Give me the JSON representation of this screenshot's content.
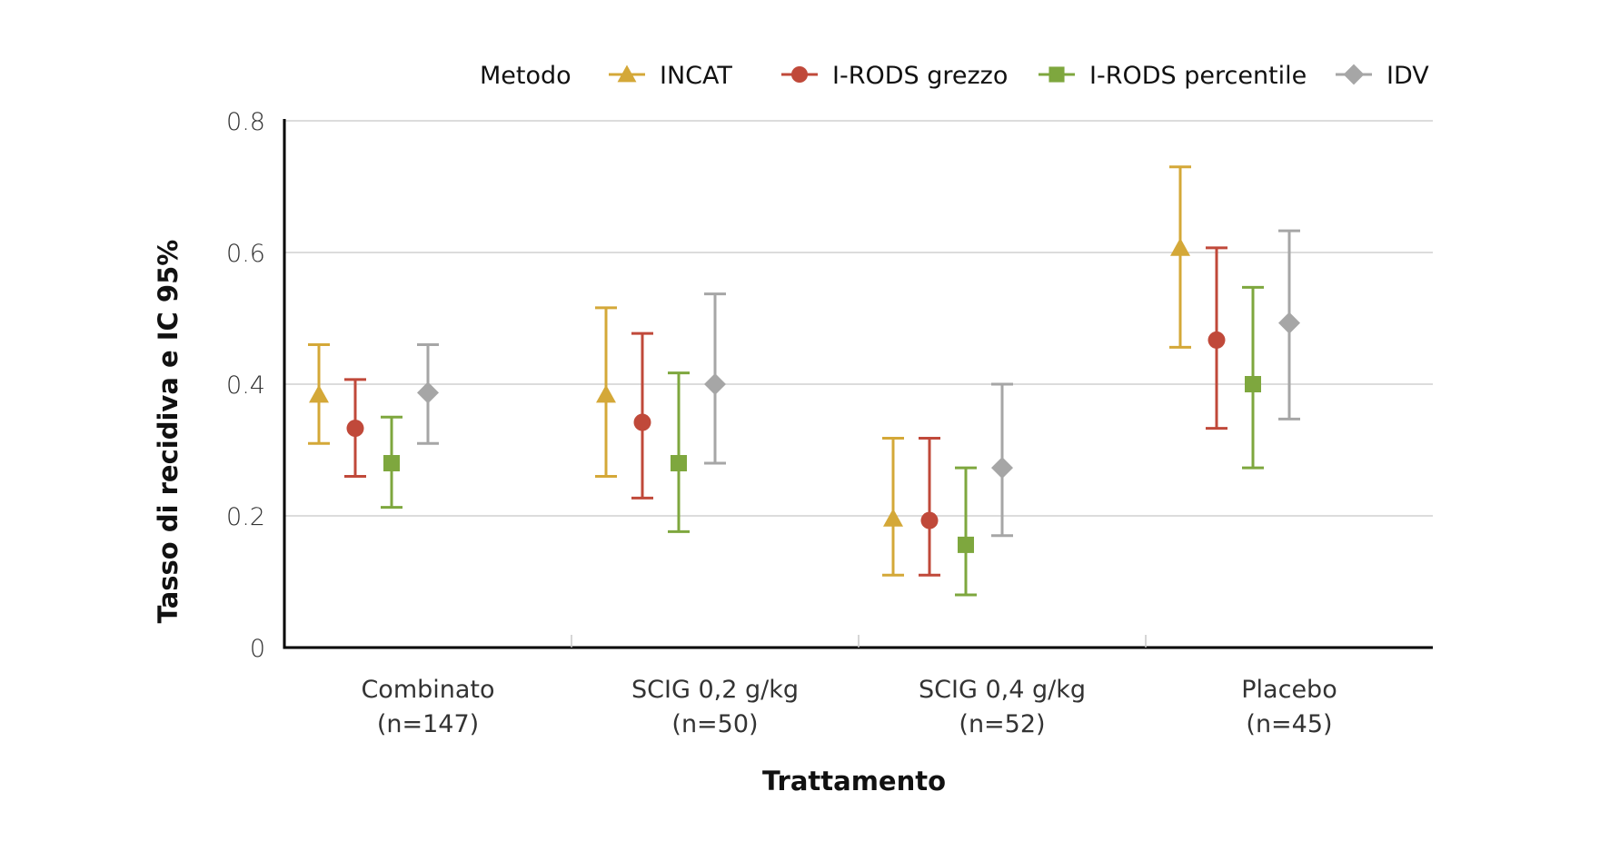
{
  "chart_data": {
    "type": "errorbar",
    "title": "",
    "xlabel": "Trattamento",
    "ylabel": "Tasso di recidiva e IC 95%",
    "ylim": [
      0,
      0.8
    ],
    "yticks": [
      0,
      0.2,
      0.4,
      0.6,
      0.8
    ],
    "ytick_labels": [
      "0",
      "0.2",
      "0.4",
      "0.6",
      "0.8"
    ],
    "grid": true,
    "legend_title": "Metodo",
    "legend_position": "top",
    "categories": [
      {
        "line1": "Combinato",
        "line2": "(n=147)"
      },
      {
        "line1": "SCIG 0,2 g/kg",
        "line2": "(n=50)"
      },
      {
        "line1": "SCIG 0,4 g/kg",
        "line2": "(n=52)"
      },
      {
        "line1": "Placebo",
        "line2": "(n=45)"
      }
    ],
    "series": [
      {
        "name": "INCAT",
        "marker": "triangle",
        "color": "#d4a838",
        "values": [
          0.384,
          0.384,
          0.196,
          0.607
        ],
        "lower": [
          0.31,
          0.26,
          0.11,
          0.456
        ],
        "upper": [
          0.46,
          0.516,
          0.318,
          0.73
        ]
      },
      {
        "name": "I-RODS grezzo",
        "marker": "circle",
        "color": "#c0493a",
        "values": [
          0.333,
          0.342,
          0.193,
          0.467
        ],
        "lower": [
          0.26,
          0.227,
          0.11,
          0.333
        ],
        "upper": [
          0.407,
          0.477,
          0.318,
          0.607
        ]
      },
      {
        "name": "I-RODS percentile",
        "marker": "square",
        "color": "#7ea73e",
        "values": [
          0.28,
          0.28,
          0.156,
          0.4
        ],
        "lower": [
          0.213,
          0.176,
          0.08,
          0.273
        ],
        "upper": [
          0.35,
          0.417,
          0.273,
          0.547
        ]
      },
      {
        "name": "IDV",
        "marker": "diamond",
        "color": "#a6a6a6",
        "values": [
          0.387,
          0.4,
          0.273,
          0.493
        ],
        "lower": [
          0.31,
          0.28,
          0.17,
          0.347
        ],
        "upper": [
          0.46,
          0.537,
          0.4,
          0.633
        ]
      }
    ]
  }
}
